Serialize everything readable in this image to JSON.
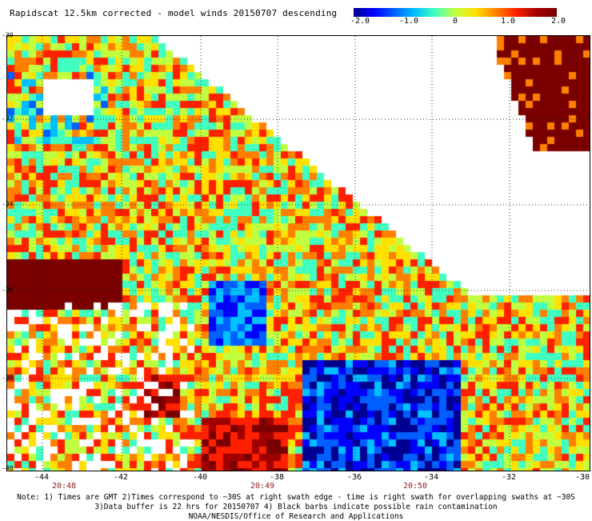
{
  "title": "Rapidscat 12.5km corrected - model winds 20150707 descending",
  "colorbar": {
    "labels": [
      "-2.0",
      "-1.0",
      "0",
      "1.0",
      "2.0"
    ],
    "min": -2.0,
    "max": 2.0,
    "colors": [
      "#000090",
      "#0000ff",
      "#0060ff",
      "#00c0ff",
      "#40ffc0",
      "#c0ff40",
      "#ffe000",
      "#ff8000",
      "#ff2000",
      "#a00000",
      "#7a0000"
    ]
  },
  "map": {
    "lon_range": [
      -45,
      -30
    ],
    "lat_range": [
      -40,
      -30
    ],
    "lon_ticks": [
      "-44",
      "-42",
      "-40",
      "-38",
      "-36",
      "-34",
      "-32",
      "-30"
    ],
    "lat_ticks": [
      "-30",
      "-32",
      "-34",
      "-36",
      "-38",
      "-40"
    ],
    "time_labels": [
      {
        "text": "20:48",
        "lon": -43.5
      },
      {
        "text": "20:49",
        "lon": -38.7
      },
      {
        "text": "20:50",
        "lon": -34.5
      }
    ],
    "grid_lines": "dotted"
  },
  "notes": [
    "Note: 1) Times are GMT 2)Times correspond to ~30S at right swath edge - time is right swath for overlapping swaths at ~30S",
    "3)Data buffer is 22 hrs for 20150707 4) Black barbs indicate possible rain contamination",
    "NOAA/NESDIS/Office of Research and Applications"
  ]
}
